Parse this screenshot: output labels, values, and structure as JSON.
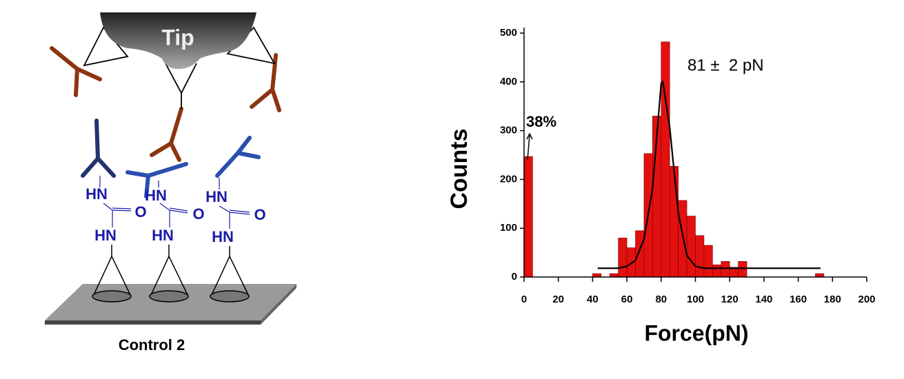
{
  "diagram": {
    "tip": "Tip",
    "hn_labels": [
      "HN",
      "HN",
      "HN",
      "HN",
      "HN",
      "HN"
    ],
    "o_labels": [
      "O",
      "O",
      "O"
    ],
    "caption": "Control 2"
  },
  "chart_data": {
    "type": "histogram",
    "x_label": "Force(pN)",
    "y_label": "Counts",
    "annotations": [
      "81 ±  2 pN",
      "38%"
    ],
    "bins": [
      0,
      5,
      10,
      15,
      20,
      25,
      30,
      35,
      40,
      45,
      50,
      55,
      60,
      65,
      70,
      75,
      80,
      85,
      90,
      95,
      100,
      105,
      110,
      115,
      120,
      125,
      130,
      135,
      140,
      145,
      150,
      155,
      160,
      165,
      170,
      175
    ],
    "values": [
      247,
      0,
      0,
      0,
      0,
      0,
      0,
      0,
      7,
      0,
      7,
      80,
      60,
      95,
      253,
      330,
      482,
      227,
      157,
      125,
      85,
      65,
      25,
      32,
      20,
      32,
      0,
      0,
      0,
      0,
      0,
      0,
      0,
      0,
      7
    ],
    "color": "#e31010",
    "fit": {
      "color": "#000000",
      "x": [
        43,
        50,
        55,
        60,
        65,
        70,
        75,
        80,
        81,
        85,
        90,
        95,
        100,
        105,
        110,
        120,
        140,
        173
      ],
      "values": [
        18,
        18,
        18,
        22,
        34,
        78,
        182,
        397,
        400,
        307,
        131,
        44,
        22,
        18,
        18,
        18,
        18,
        18
      ]
    },
    "xlim": [
      0,
      200
    ],
    "ylim": [
      0,
      500
    ],
    "xticks": [
      0,
      20,
      40,
      60,
      80,
      100,
      120,
      140,
      160,
      180,
      200
    ],
    "yticks": [
      0,
      100,
      200,
      300,
      400,
      500
    ]
  }
}
